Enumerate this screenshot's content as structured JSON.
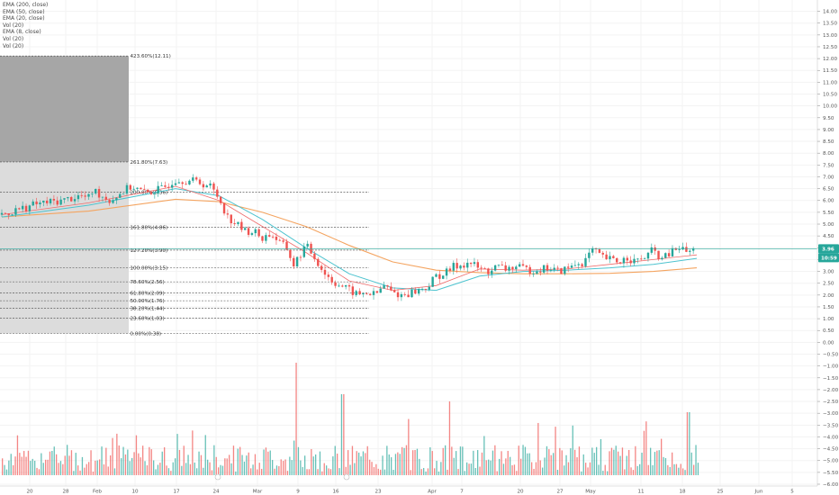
{
  "legend": [
    "EMA (200, close)",
    "EMA (50, close)",
    "EMA (20, close)",
    "Vol (20)",
    "EMA (8, close)",
    "Vol (20)",
    "Vol (20)"
  ],
  "colors": {
    "up": "#26a69a",
    "down": "#ef5350",
    "ema8": "#f0a0a0",
    "ema20": "#ef6c6c",
    "ema50": "#4dc3cf",
    "ema200": "#f4a460",
    "price_line": "#26a69a",
    "fib_dark": "#a6a6a6",
    "fib_light": "#dcdcdc"
  },
  "chart_data": {
    "type": "candlestick",
    "ylim": [
      -6.0,
      14.25
    ],
    "y_ticks": [
      "14.00",
      "13.50",
      "13.00",
      "12.50",
      "12.00",
      "11.50",
      "11.00",
      "10.50",
      "10.00",
      "9.50",
      "9.00",
      "8.50",
      "8.00",
      "7.50",
      "7.00",
      "6.50",
      "6.00",
      "5.50",
      "5.00",
      "4.50",
      "4.00",
      "3.50",
      "3.00",
      "2.50",
      "2.00",
      "1.50",
      "1.00",
      "0.50",
      "0.00",
      "−0.50",
      "−1.00",
      "−1.50",
      "−2.00",
      "−2.50",
      "−3.00",
      "−3.50",
      "−4.00",
      "−4.50",
      "−5.00",
      "−5.50",
      "−6.00"
    ],
    "x_ticks": [
      "20",
      "28",
      "Feb",
      "10",
      "17",
      "24",
      "Mar",
      "9",
      "16",
      "23",
      "Apr",
      "7",
      "20",
      "27",
      "May",
      "11",
      "18",
      "25",
      "Jun",
      "5"
    ],
    "fib_levels": [
      {
        "label": "423.60%(12.11)",
        "value": 12.11
      },
      {
        "label": "261.80%(7.63)",
        "value": 7.63
      },
      {
        "label": "200.00%(6.36)",
        "value": 6.36
      },
      {
        "label": "161.80%(4.86)",
        "value": 4.86
      },
      {
        "label": "127.20%(3.90)",
        "value": 3.9
      },
      {
        "label": "100.00%(3.15)",
        "value": 3.15
      },
      {
        "label": "78.60%(2.56)",
        "value": 2.56
      },
      {
        "label": "61.80%(2.09)",
        "value": 2.09
      },
      {
        "label": "50.00%(1.76)",
        "value": 1.76
      },
      {
        "label": "38.20%(1.44)",
        "value": 1.44
      },
      {
        "label": "23.60%(1.03)",
        "value": 1.03
      },
      {
        "label": "0.00%(0.38)",
        "value": 0.38
      }
    ],
    "last_price": {
      "label": "3.96",
      "value": 3.96
    },
    "countdown": "10:59",
    "price_path": [
      [
        0,
        5.4
      ],
      [
        8,
        5.85
      ],
      [
        14,
        6.0
      ],
      [
        18,
        6.2
      ],
      [
        20,
        6.1
      ],
      [
        21,
        6.45
      ],
      [
        23,
        6.2
      ],
      [
        25,
        6.0
      ],
      [
        28,
        6.4
      ],
      [
        30,
        6.6
      ],
      [
        33,
        6.3
      ],
      [
        37,
        6.5
      ],
      [
        40,
        6.9
      ],
      [
        45,
        6.8
      ],
      [
        48,
        6.6
      ],
      [
        50,
        6.1
      ],
      [
        52,
        5.3
      ],
      [
        54,
        5.0
      ],
      [
        56,
        4.7
      ],
      [
        58,
        4.7
      ],
      [
        60,
        4.4
      ],
      [
        62,
        4.6
      ],
      [
        64,
        4.2
      ],
      [
        66,
        3.9
      ],
      [
        67,
        3.2
      ],
      [
        68,
        3.5
      ],
      [
        70,
        4.1
      ],
      [
        72,
        3.6
      ],
      [
        74,
        3.0
      ],
      [
        76,
        2.6
      ],
      [
        78,
        2.4
      ],
      [
        80,
        2.2
      ],
      [
        82,
        2.0
      ],
      [
        84,
        2.1
      ],
      [
        86,
        2.0
      ],
      [
        88,
        2.4
      ],
      [
        90,
        2.1
      ],
      [
        92,
        2.0
      ],
      [
        94,
        2.1
      ],
      [
        96,
        2.2
      ],
      [
        98,
        2.35
      ],
      [
        100,
        2.8
      ],
      [
        102,
        2.9
      ],
      [
        104,
        3.2
      ],
      [
        106,
        3.3
      ],
      [
        108,
        3.35
      ],
      [
        110,
        3.1
      ],
      [
        112,
        3.0
      ],
      [
        114,
        3.2
      ],
      [
        116,
        3.1
      ],
      [
        118,
        3.2
      ],
      [
        120,
        3.1
      ],
      [
        122,
        3.05
      ],
      [
        124,
        3.1
      ],
      [
        126,
        3.15
      ],
      [
        128,
        3.0
      ],
      [
        130,
        3.1
      ],
      [
        132,
        3.3
      ],
      [
        134,
        3.4
      ],
      [
        136,
        3.9
      ],
      [
        138,
        3.6
      ],
      [
        140,
        3.5
      ],
      [
        142,
        3.4
      ],
      [
        144,
        3.6
      ],
      [
        146,
        3.4
      ],
      [
        148,
        3.6
      ],
      [
        150,
        3.9
      ],
      [
        152,
        3.5
      ],
      [
        154,
        3.8
      ],
      [
        156,
        4.0
      ],
      [
        158,
        3.8
      ],
      [
        160,
        3.96
      ]
    ],
    "ema_paths": {
      "ema50": [
        [
          0,
          5.3
        ],
        [
          20,
          5.8
        ],
        [
          40,
          6.5
        ],
        [
          50,
          6.2
        ],
        [
          60,
          5.2
        ],
        [
          70,
          4.0
        ],
        [
          80,
          2.9
        ],
        [
          90,
          2.3
        ],
        [
          100,
          2.2
        ],
        [
          110,
          2.8
        ],
        [
          120,
          3.0
        ],
        [
          130,
          3.05
        ],
        [
          140,
          3.15
        ],
        [
          150,
          3.3
        ],
        [
          160,
          3.55
        ]
      ],
      "ema200": [
        [
          0,
          5.3
        ],
        [
          20,
          5.55
        ],
        [
          40,
          6.05
        ],
        [
          50,
          5.95
        ],
        [
          60,
          5.5
        ],
        [
          70,
          4.9
        ],
        [
          80,
          4.1
        ],
        [
          90,
          3.4
        ],
        [
          100,
          3.05
        ],
        [
          110,
          2.95
        ],
        [
          120,
          2.9
        ],
        [
          130,
          2.9
        ],
        [
          140,
          2.92
        ],
        [
          150,
          3.0
        ],
        [
          160,
          3.15
        ]
      ],
      "ema20": [
        [
          0,
          5.4
        ],
        [
          20,
          5.9
        ],
        [
          40,
          6.6
        ],
        [
          50,
          6.0
        ],
        [
          60,
          4.9
        ],
        [
          70,
          3.8
        ],
        [
          80,
          2.6
        ],
        [
          90,
          2.2
        ],
        [
          100,
          2.4
        ],
        [
          110,
          3.1
        ],
        [
          120,
          3.05
        ],
        [
          130,
          3.1
        ],
        [
          140,
          3.3
        ],
        [
          150,
          3.5
        ],
        [
          160,
          3.7
        ]
      ]
    },
    "volume_max": 100
  }
}
